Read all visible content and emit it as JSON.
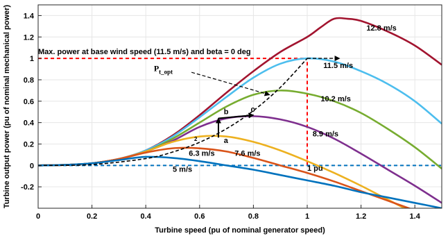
{
  "chart_data": {
    "type": "line",
    "title": "",
    "xlabel": "Turbine speed (pu of nominal generator speed)",
    "ylabel": "Turbine output power (pu of nominal mechanical power)",
    "xlim": [
      0,
      1.5
    ],
    "ylim": [
      -0.4,
      1.5
    ],
    "x_ticks": [
      0,
      0.2,
      0.4,
      0.6,
      0.8,
      1,
      1.2,
      1.4
    ],
    "x_tick_labels": [
      "0",
      "0.2",
      "0.4",
      "0.6",
      "0.8",
      "1",
      "1.2",
      "1.4"
    ],
    "y_ticks": [
      -0.2,
      0,
      0.2,
      0.4,
      0.6,
      0.8,
      1,
      1.2,
      1.4
    ],
    "y_tick_labels": [
      "-0.2",
      "0",
      "0.2",
      "0.4",
      "0.6",
      "0.8",
      "1",
      "1.2",
      "1.4"
    ],
    "grid": true,
    "series": [
      {
        "name": "12.8 m/s",
        "color": "#a2142f",
        "points": [
          [
            0,
            0
          ],
          [
            0.1,
            0.005
          ],
          [
            0.2,
            0.02
          ],
          [
            0.3,
            0.06
          ],
          [
            0.4,
            0.14
          ],
          [
            0.5,
            0.28
          ],
          [
            0.6,
            0.47
          ],
          [
            0.7,
            0.68
          ],
          [
            0.8,
            0.88
          ],
          [
            0.9,
            1.06
          ],
          [
            1.0,
            1.2
          ],
          [
            1.05,
            1.29
          ],
          [
            1.1,
            1.37
          ],
          [
            1.15,
            1.37
          ],
          [
            1.2,
            1.35
          ],
          [
            1.3,
            1.25
          ],
          [
            1.4,
            1.12
          ],
          [
            1.5,
            0.94
          ]
        ]
      },
      {
        "name": "11.5 m/s",
        "color": "#4dbeee",
        "points": [
          [
            0,
            0
          ],
          [
            0.1,
            0.005
          ],
          [
            0.2,
            0.02
          ],
          [
            0.3,
            0.06
          ],
          [
            0.4,
            0.14
          ],
          [
            0.5,
            0.27
          ],
          [
            0.6,
            0.45
          ],
          [
            0.7,
            0.64
          ],
          [
            0.8,
            0.82
          ],
          [
            0.9,
            0.95
          ],
          [
            1.0,
            1.0
          ],
          [
            1.1,
            0.97
          ],
          [
            1.2,
            0.88
          ],
          [
            1.3,
            0.76
          ],
          [
            1.4,
            0.6
          ],
          [
            1.5,
            0.39
          ]
        ]
      },
      {
        "name": "10.2 m/s",
        "color": "#77ac30",
        "points": [
          [
            0,
            0
          ],
          [
            0.1,
            0.005
          ],
          [
            0.2,
            0.02
          ],
          [
            0.3,
            0.06
          ],
          [
            0.4,
            0.13
          ],
          [
            0.5,
            0.25
          ],
          [
            0.6,
            0.4
          ],
          [
            0.7,
            0.55
          ],
          [
            0.8,
            0.66
          ],
          [
            0.9,
            0.7
          ],
          [
            1.0,
            0.67
          ],
          [
            1.1,
            0.6
          ],
          [
            1.2,
            0.49
          ],
          [
            1.3,
            0.34
          ],
          [
            1.4,
            0.17
          ],
          [
            1.5,
            -0.03
          ]
        ]
      },
      {
        "name": "8.9 m/s",
        "color": "#7e2f8e",
        "points": [
          [
            0,
            0
          ],
          [
            0.1,
            0.005
          ],
          [
            0.2,
            0.02
          ],
          [
            0.3,
            0.06
          ],
          [
            0.4,
            0.13
          ],
          [
            0.5,
            0.23
          ],
          [
            0.6,
            0.36
          ],
          [
            0.7,
            0.44
          ],
          [
            0.8,
            0.46
          ],
          [
            0.9,
            0.43
          ],
          [
            1.0,
            0.36
          ],
          [
            1.1,
            0.25
          ],
          [
            1.2,
            0.11
          ],
          [
            1.3,
            -0.04
          ],
          [
            1.4,
            -0.19
          ],
          [
            1.5,
            -0.35
          ]
        ]
      },
      {
        "name": "7.6 m/s",
        "color": "#edb120",
        "points": [
          [
            0,
            0
          ],
          [
            0.1,
            0.005
          ],
          [
            0.2,
            0.02
          ],
          [
            0.3,
            0.06
          ],
          [
            0.4,
            0.13
          ],
          [
            0.5,
            0.22
          ],
          [
            0.6,
            0.27
          ],
          [
            0.7,
            0.27
          ],
          [
            0.8,
            0.22
          ],
          [
            0.9,
            0.14
          ],
          [
            1.0,
            0.04
          ],
          [
            1.1,
            -0.07
          ],
          [
            1.2,
            -0.19
          ],
          [
            1.3,
            -0.32
          ],
          [
            1.4,
            -0.45
          ]
        ]
      },
      {
        "name": "6.3 m/s",
        "color": "#d95319",
        "points": [
          [
            0,
            0
          ],
          [
            0.1,
            0.005
          ],
          [
            0.2,
            0.02
          ],
          [
            0.3,
            0.06
          ],
          [
            0.4,
            0.12
          ],
          [
            0.5,
            0.16
          ],
          [
            0.6,
            0.16
          ],
          [
            0.7,
            0.13
          ],
          [
            0.8,
            0.07
          ],
          [
            0.9,
            0.0
          ],
          [
            1.0,
            -0.07
          ],
          [
            1.1,
            -0.15
          ],
          [
            1.2,
            -0.24
          ],
          [
            1.3,
            -0.33
          ],
          [
            1.4,
            -0.42
          ]
        ]
      },
      {
        "name": "5 m/s",
        "color": "#0072bd",
        "points": [
          [
            0,
            0
          ],
          [
            0.1,
            0.005
          ],
          [
            0.2,
            0.02
          ],
          [
            0.3,
            0.05
          ],
          [
            0.4,
            0.08
          ],
          [
            0.5,
            0.07
          ],
          [
            0.6,
            0.04
          ],
          [
            0.7,
            0.0
          ],
          [
            0.8,
            -0.04
          ],
          [
            0.9,
            -0.09
          ],
          [
            1.0,
            -0.14
          ],
          [
            1.1,
            -0.19
          ],
          [
            1.2,
            -0.25
          ],
          [
            1.3,
            -0.3
          ],
          [
            1.4,
            -0.35
          ],
          [
            1.5,
            -0.4
          ]
        ]
      },
      {
        "name": "Pt_opt",
        "color": "#000000",
        "style": "dashed",
        "points": [
          [
            0,
            0
          ],
          [
            0.2,
            0.008
          ],
          [
            0.4,
            0.064
          ],
          [
            0.5,
            0.125
          ],
          [
            0.6,
            0.216
          ],
          [
            0.7,
            0.343
          ],
          [
            0.8,
            0.512
          ],
          [
            0.9,
            0.729
          ],
          [
            1.0,
            1.0
          ]
        ]
      }
    ],
    "reference_lines": [
      {
        "type": "horizontal",
        "y": 1,
        "x_to": 1,
        "color": "#ff0000",
        "style": "dashed"
      },
      {
        "type": "vertical",
        "x": 1,
        "y_from": 0,
        "y_to": 1,
        "color": "#ff0000",
        "style": "dashed"
      },
      {
        "type": "horizontal",
        "y": 0,
        "color": "#0072bd",
        "style": "dashed"
      }
    ],
    "annotations": [
      {
        "text": "Max. power at base wind speed (11.5 m/s) and beta = 0 deg",
        "x": 0.0,
        "y": 1.04
      },
      {
        "text": "12.8 m/s",
        "x": 1.22,
        "y": 1.26
      },
      {
        "text": "11.5 m/s",
        "x": 1.06,
        "y": 0.91
      },
      {
        "text": "10.2 m/s",
        "x": 1.05,
        "y": 0.6
      },
      {
        "text": "8.9 m/s",
        "x": 1.02,
        "y": 0.27
      },
      {
        "text": "7.6 m/s",
        "x": 0.73,
        "y": 0.09
      },
      {
        "text": "6.3 m/s",
        "x": 0.56,
        "y": 0.09
      },
      {
        "text": "5 m/s",
        "x": 0.5,
        "y": -0.06
      },
      {
        "text": "1 pu",
        "x": 1.0,
        "y": -0.05
      },
      {
        "text": "a",
        "x": 0.69,
        "y": 0.21
      },
      {
        "text": "b",
        "x": 0.69,
        "y": 0.48
      },
      {
        "text": "c",
        "x": 0.79,
        "y": 0.5
      },
      {
        "text": "2",
        "x": 0.58,
        "y": 0.23
      }
    ],
    "pt_label": {
      "main": "P",
      "sub": "t_opt"
    }
  }
}
